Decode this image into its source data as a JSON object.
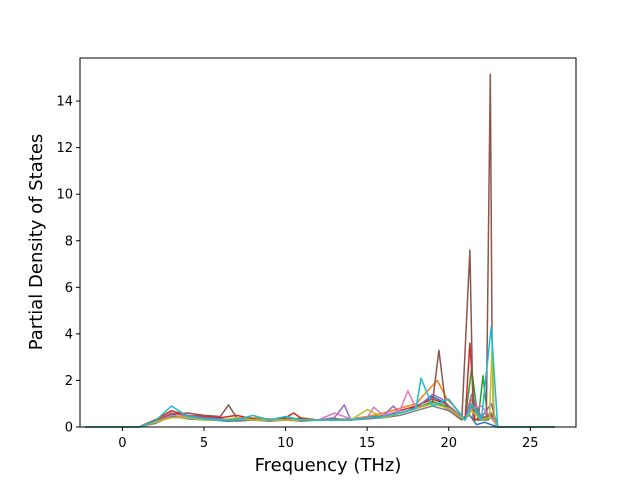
{
  "chart_data": {
    "type": "line",
    "title": "",
    "xlabel": "Frequency (THz)",
    "ylabel": "Partial Density of States",
    "xlim": [
      -2.6,
      27.8
    ],
    "ylim": [
      0,
      15.85
    ],
    "xticks": [
      0,
      5,
      10,
      15,
      20,
      25
    ],
    "yticks": [
      0,
      2,
      4,
      6,
      8,
      10,
      12,
      14
    ],
    "grid": false,
    "legend": "none",
    "colors": [
      "#1f77b4",
      "#ff7f0e",
      "#2ca02c",
      "#d62728",
      "#9467bd",
      "#8c564b",
      "#e377c2",
      "#7f7f7f",
      "#bcbd22",
      "#17becf"
    ],
    "series": [
      {
        "x": [
          -2.3,
          1.0,
          2.0,
          3.0,
          3.5,
          4.5,
          5.5,
          6.5,
          7.5,
          8.5,
          9.5,
          10.5,
          11.5,
          12.5,
          13.5,
          14.5,
          15.5,
          16.5,
          17.5,
          18.3,
          19.0,
          19.6,
          20.2,
          20.8,
          21.3,
          21.7,
          22.2,
          22.6,
          23.0,
          26.5
        ],
        "y": [
          0,
          0,
          0.2,
          0.5,
          0.6,
          0.4,
          0.3,
          0.25,
          0.3,
          0.3,
          0.35,
          0.3,
          0.3,
          0.3,
          0.3,
          0.35,
          0.4,
          0.5,
          0.7,
          1.0,
          1.3,
          1.1,
          0.8,
          0.4,
          0.5,
          0.1,
          0.2,
          0.1,
          0,
          0
        ]
      },
      {
        "x": [
          -2.3,
          1.0,
          2.0,
          3.0,
          4.0,
          5.0,
          6.0,
          7.0,
          8.0,
          9.0,
          10.0,
          11.0,
          12.0,
          13.0,
          14.0,
          15.0,
          16.0,
          17.0,
          18.0,
          18.5,
          19.3,
          19.9,
          20.3,
          21.0,
          21.4,
          22.0,
          22.6,
          23.0,
          26.5
        ],
        "y": [
          0,
          0,
          0.25,
          0.6,
          0.45,
          0.5,
          0.35,
          0.3,
          0.4,
          0.35,
          0.3,
          0.4,
          0.3,
          0.3,
          0.35,
          0.45,
          0.6,
          0.8,
          1.0,
          1.4,
          2.0,
          1.2,
          0.9,
          0.3,
          1.2,
          0.3,
          0.6,
          0,
          0
        ]
      },
      {
        "x": [
          -2.3,
          1.0,
          2.0,
          3.0,
          4.0,
          5.0,
          6.0,
          7.0,
          8.0,
          9.0,
          10.0,
          11.0,
          12.0,
          13.0,
          14.0,
          15.0,
          16.0,
          17.0,
          18.0,
          19.0,
          19.8,
          20.5,
          21.0,
          21.4,
          21.8,
          22.1,
          22.4,
          22.7,
          23.0,
          26.5
        ],
        "y": [
          0,
          0,
          0.2,
          0.5,
          0.4,
          0.35,
          0.3,
          0.35,
          0.3,
          0.3,
          0.3,
          0.3,
          0.3,
          0.35,
          0.3,
          0.4,
          0.5,
          0.6,
          0.8,
          1.1,
          0.9,
          0.5,
          0.3,
          2.5,
          0.3,
          2.2,
          0.3,
          0.5,
          0,
          0
        ]
      },
      {
        "x": [
          -2.3,
          1.0,
          2.0,
          3.0,
          4.0,
          5.0,
          6.0,
          7.0,
          8.0,
          9.0,
          10.0,
          10.5,
          11.0,
          12.0,
          13.0,
          14.0,
          15.0,
          16.0,
          17.0,
          18.0,
          19.0,
          19.8,
          20.5,
          21.0,
          21.3,
          21.6,
          22.0,
          22.6,
          23.0,
          26.5
        ],
        "y": [
          0,
          0,
          0.3,
          0.7,
          0.5,
          0.45,
          0.4,
          0.5,
          0.35,
          0.3,
          0.4,
          0.6,
          0.35,
          0.3,
          0.35,
          0.3,
          0.4,
          0.5,
          0.7,
          0.9,
          1.2,
          1.0,
          0.6,
          0.3,
          3.6,
          0.3,
          0.4,
          0.5,
          0,
          0
        ]
      },
      {
        "x": [
          -2.3,
          1.0,
          2.0,
          3.0,
          4.0,
          5.0,
          6.0,
          7.0,
          8.0,
          9.0,
          10.0,
          11.0,
          12.0,
          13.0,
          13.6,
          14.0,
          15.0,
          16.0,
          16.6,
          17.0,
          18.0,
          19.0,
          19.6,
          20.3,
          21.0,
          21.4,
          22.0,
          22.6,
          23.0,
          26.5
        ],
        "y": [
          0,
          0,
          0.2,
          0.6,
          0.5,
          0.4,
          0.35,
          0.3,
          0.3,
          0.3,
          0.3,
          0.3,
          0.3,
          0.4,
          0.95,
          0.3,
          0.4,
          0.5,
          0.9,
          0.6,
          0.8,
          1.4,
          1.2,
          0.7,
          0.3,
          1.4,
          0.4,
          1.0,
          0,
          0
        ]
      },
      {
        "x": [
          -2.3,
          1.0,
          2.0,
          3.0,
          4.0,
          5.0,
          6.0,
          6.5,
          7.0,
          8.0,
          9.0,
          10.0,
          11.0,
          12.0,
          13.0,
          14.0,
          15.0,
          16.0,
          17.0,
          18.0,
          19.0,
          19.4,
          19.8,
          20.2,
          20.8,
          21.3,
          21.5,
          21.8,
          22.3,
          22.55,
          22.65,
          22.75,
          23.0,
          26.5
        ],
        "y": [
          0,
          0,
          0.25,
          0.55,
          0.6,
          0.5,
          0.45,
          0.95,
          0.4,
          0.35,
          0.3,
          0.35,
          0.35,
          0.3,
          0.3,
          0.35,
          0.4,
          0.5,
          0.6,
          0.8,
          1.0,
          3.3,
          1.0,
          0.6,
          0.3,
          7.6,
          0.3,
          0.3,
          0.3,
          15.15,
          4.0,
          0.3,
          0,
          0
        ]
      },
      {
        "x": [
          -2.3,
          1.0,
          2.0,
          3.0,
          4.0,
          5.0,
          6.0,
          7.0,
          8.0,
          9.0,
          10.0,
          11.0,
          12.0,
          13.0,
          14.0,
          15.0,
          15.4,
          16.0,
          17.0,
          17.5,
          18.0,
          19.0,
          19.6,
          20.2,
          21.0,
          21.4,
          22.0,
          22.6,
          23.0,
          26.5
        ],
        "y": [
          0,
          0,
          0.2,
          0.5,
          0.4,
          0.35,
          0.3,
          0.3,
          0.3,
          0.3,
          0.3,
          0.3,
          0.3,
          0.6,
          0.35,
          0.4,
          0.85,
          0.5,
          0.7,
          1.55,
          0.8,
          1.0,
          0.9,
          0.6,
          0.3,
          0.8,
          0.9,
          0.4,
          0,
          0
        ]
      },
      {
        "x": [
          -2.3,
          1.0,
          2.0,
          3.0,
          4.0,
          5.0,
          6.0,
          7.0,
          8.0,
          9.0,
          10.0,
          11.0,
          12.0,
          13.0,
          14.0,
          15.0,
          16.0,
          17.0,
          18.0,
          19.0,
          20.0,
          21.0,
          21.4,
          22.0,
          22.6,
          23.0,
          26.5
        ],
        "y": [
          0,
          0,
          0.15,
          0.45,
          0.35,
          0.3,
          0.3,
          0.25,
          0.3,
          0.25,
          0.3,
          0.25,
          0.3,
          0.3,
          0.3,
          0.35,
          0.4,
          0.5,
          0.7,
          0.9,
          0.7,
          0.3,
          0.9,
          0.3,
          0.6,
          0,
          0
        ]
      },
      {
        "x": [
          -2.3,
          1.0,
          2.0,
          3.0,
          4.0,
          5.0,
          6.0,
          7.0,
          8.0,
          9.0,
          10.0,
          11.0,
          12.0,
          13.0,
          14.0,
          15.0,
          16.0,
          17.0,
          18.0,
          19.0,
          20.0,
          21.0,
          21.4,
          22.0,
          22.5,
          22.65,
          22.8,
          23.0,
          26.5
        ],
        "y": [
          0,
          0,
          0.2,
          0.4,
          0.4,
          0.3,
          0.3,
          0.4,
          0.3,
          0.3,
          0.3,
          0.3,
          0.3,
          0.3,
          0.3,
          0.75,
          0.4,
          0.6,
          0.8,
          1.0,
          0.8,
          0.3,
          0.7,
          0.3,
          0.4,
          3.3,
          0.3,
          0,
          0
        ]
      },
      {
        "x": [
          -2.3,
          1.0,
          2.0,
          3.0,
          4.0,
          5.0,
          6.0,
          7.0,
          8.0,
          9.0,
          10.0,
          11.0,
          12.0,
          13.0,
          14.0,
          15.0,
          16.0,
          17.0,
          18.0,
          18.3,
          19.0,
          20.0,
          21.0,
          21.4,
          22.0,
          22.6,
          23.0,
          26.5
        ],
        "y": [
          0,
          0,
          0.25,
          0.9,
          0.45,
          0.35,
          0.3,
          0.3,
          0.5,
          0.3,
          0.45,
          0.3,
          0.3,
          0.3,
          0.3,
          0.4,
          0.45,
          0.6,
          0.8,
          2.1,
          0.9,
          1.2,
          0.3,
          1.0,
          0.3,
          4.3,
          0,
          0
        ]
      }
    ]
  }
}
